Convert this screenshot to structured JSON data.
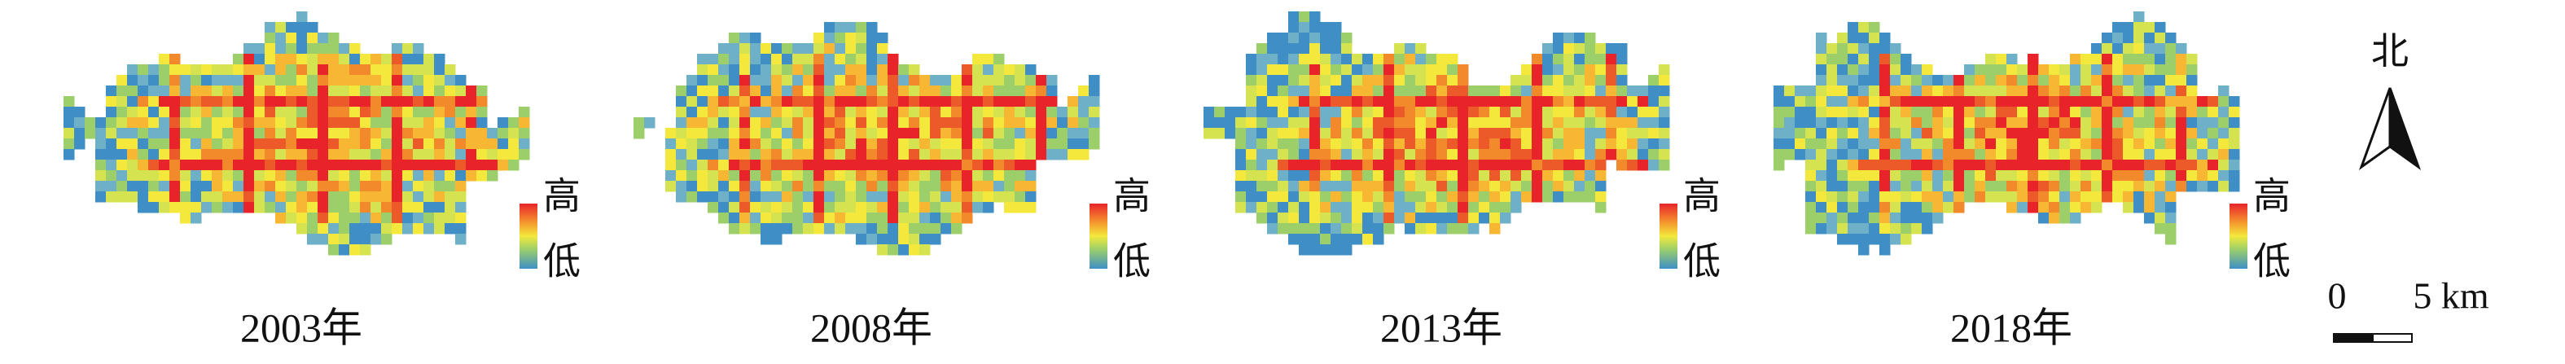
{
  "panels": [
    {
      "year": "2003年",
      "legend_high": "高",
      "legend_low": "低"
    },
    {
      "year": "2008年",
      "legend_high": "高",
      "legend_low": "低"
    },
    {
      "year": "2013年",
      "legend_high": "高",
      "legend_low": "低"
    },
    {
      "year": "2018年",
      "legend_high": "高",
      "legend_low": "低"
    }
  ],
  "north": "北",
  "scale": {
    "start": "0",
    "end": "5 km"
  }
}
